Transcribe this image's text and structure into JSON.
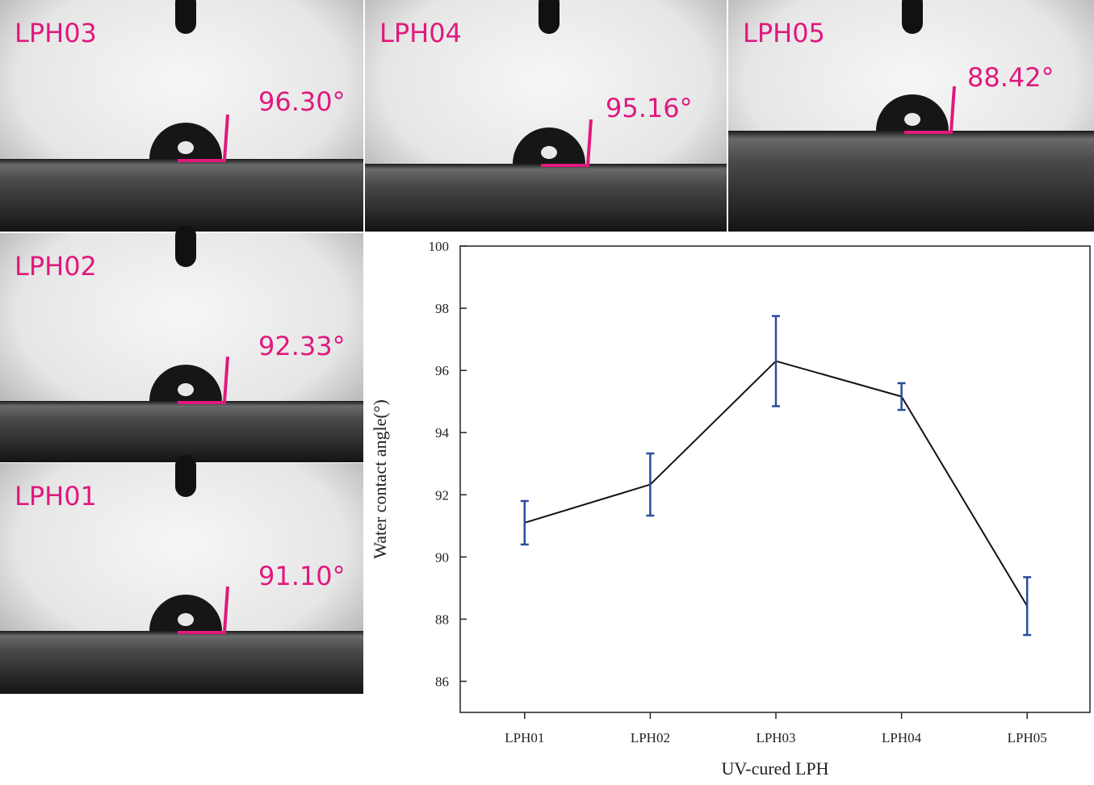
{
  "panels": [
    {
      "label": "LPH03",
      "angle": "96.30°"
    },
    {
      "label": "LPH04",
      "angle": "95.16°"
    },
    {
      "label": "LPH05",
      "angle": "88.42°"
    },
    {
      "label": "LPH02",
      "angle": "92.33°"
    },
    {
      "label": "LPH01",
      "angle": "91.10°"
    }
  ],
  "chart_data": {
    "type": "line",
    "xlabel": "UV-cured LPH",
    "ylabel": "Water contact angle(°)",
    "categories": [
      "LPH01",
      "LPH02",
      "LPH03",
      "LPH04",
      "LPH05"
    ],
    "values": [
      91.1,
      92.33,
      96.3,
      95.16,
      88.42
    ],
    "errors": [
      0.7,
      1.0,
      1.45,
      0.43,
      0.93
    ],
    "color": "#111111",
    "error_color": "#2a4c9c",
    "ylim": [
      85,
      100
    ],
    "yticks": [
      86,
      88,
      90,
      92,
      94,
      96,
      98,
      100
    ],
    "grid": false
  }
}
